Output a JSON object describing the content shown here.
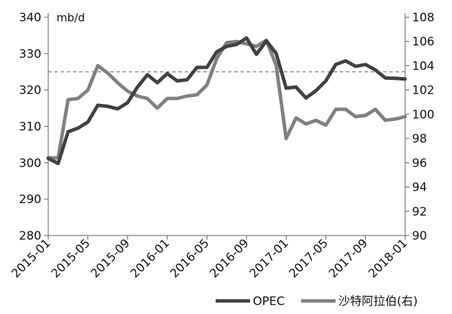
{
  "chart_data": {
    "type": "line",
    "unit_label": "mb/d",
    "x": [
      "2015-01",
      "2015-02",
      "2015-03",
      "2015-04",
      "2015-05",
      "2015-06",
      "2015-07",
      "2015-08",
      "2015-09",
      "2015-10",
      "2015-11",
      "2015-12",
      "2016-01",
      "2016-02",
      "2016-03",
      "2016-04",
      "2016-05",
      "2016-06",
      "2016-07",
      "2016-08",
      "2016-09",
      "2016-10",
      "2016-11",
      "2016-12",
      "2017-01",
      "2017-02",
      "2017-03",
      "2017-04",
      "2017-05",
      "2017-06",
      "2017-07",
      "2017-08",
      "2017-09",
      "2017-10",
      "2017-11",
      "2017-12",
      "2018-01"
    ],
    "x_tick_labels": [
      "2015-01",
      "2015-05",
      "2015-09",
      "2016-01",
      "2016-05",
      "2016-09",
      "2017-01",
      "2017-05",
      "2017-09",
      "2018-01"
    ],
    "y_left": {
      "ylim": [
        280,
        340
      ],
      "ticks": [
        "280",
        "290",
        "300",
        "310",
        "320",
        "330",
        "340"
      ]
    },
    "y_right": {
      "ylim": [
        90,
        108
      ],
      "ticks": [
        "90",
        "92",
        "94",
        "96",
        "98",
        "100",
        "102",
        "104",
        "106",
        "108"
      ]
    },
    "reference_line": {
      "axis": "left",
      "value": 325,
      "style": "dashed"
    },
    "series": [
      {
        "name": "OPEC",
        "axis": "left",
        "color": "#404040",
        "values": [
          301.2,
          299.8,
          308.5,
          309.5,
          311.2,
          315.8,
          315.5,
          314.8,
          316.5,
          320.8,
          324.2,
          322.0,
          324.5,
          322.5,
          322.8,
          326.2,
          326.2,
          330.5,
          332.0,
          332.5,
          334.3,
          329.8,
          333.5,
          330.0,
          320.5,
          320.8,
          317.8,
          319.8,
          322.5,
          327.0,
          328.0,
          326.5,
          327.0,
          325.5,
          323.3,
          323.2,
          323.0
        ]
      },
      {
        "name": "沙特阿拉伯(右)",
        "axis": "right",
        "color": "#7f7f7f",
        "values": [
          96.4,
          96.4,
          101.2,
          101.3,
          102.0,
          104.0,
          103.4,
          102.6,
          101.9,
          101.5,
          101.3,
          100.5,
          101.3,
          101.3,
          101.5,
          101.6,
          102.4,
          104.6,
          105.9,
          106.0,
          105.8,
          105.6,
          106.1,
          104.0,
          98.0,
          99.7,
          99.2,
          99.5,
          99.1,
          100.4,
          100.4,
          99.8,
          99.9,
          100.4,
          99.5,
          99.6,
          99.8
        ]
      }
    ],
    "legend_position": "bottom-right",
    "grid": false
  }
}
